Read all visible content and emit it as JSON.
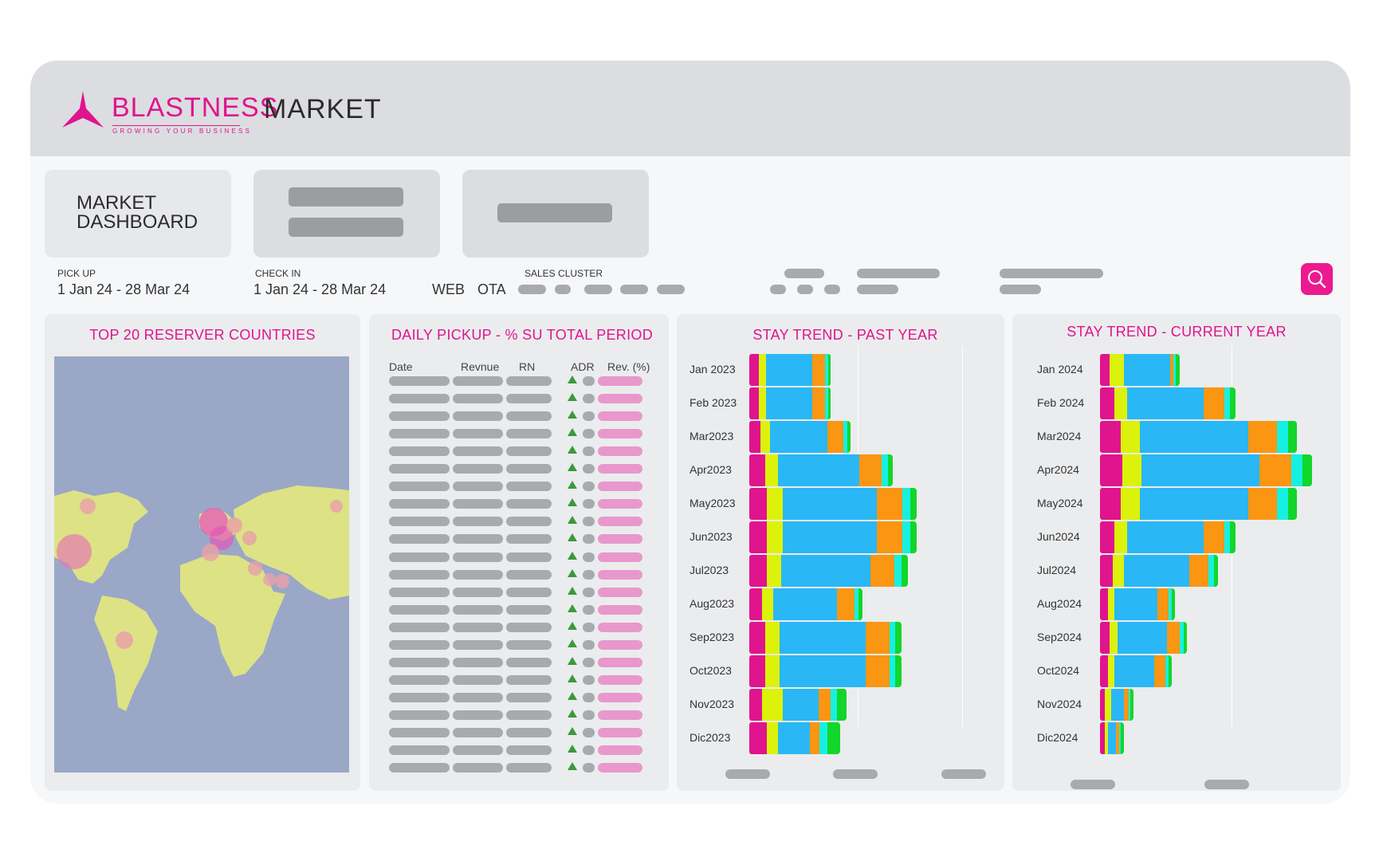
{
  "header": {
    "brand": "BLASTNESS",
    "tagline": "GROWING YOUR BUSINESS",
    "title": "MARKET"
  },
  "tiles": {
    "dashboard": "MARKET DASHBOARD"
  },
  "filters": {
    "pickup_label": "PICK UP",
    "pickup_value": "1 Jan 24 - 28 Mar 24",
    "checkin_label": "CHECK IN",
    "checkin_value": "1 Jan 24 - 28 Mar 24",
    "channel_web": "WEB",
    "channel_ota": "OTA",
    "sales_cluster_label": "SALES CLUSTER"
  },
  "panels": {
    "countries_title": "TOP 20 RESERVER COUNTRIES",
    "pickup_title": "DAILY PICKUP - % SU TOTAL PERIOD",
    "past_title": "STAY TREND - PAST YEAR",
    "current_title": "STAY TREND - CURRENT YEAR"
  },
  "pickup_table": {
    "columns": [
      "Date",
      "Revnue",
      "RN",
      "ADR",
      "Rev. (%)"
    ],
    "row_count_visible": 23
  },
  "colors": {
    "accent": "#ec1a8f",
    "series": [
      "#e0148d",
      "#dcf20a",
      "#2ab7f5",
      "#fa9612",
      "#16f0e2",
      "#12d62a"
    ]
  },
  "chart_data": [
    {
      "type": "bar",
      "title": "STAY TREND - PAST YEAR",
      "orientation": "horizontal-stacked",
      "categories": [
        "Jan 2023",
        "Feb 2023",
        "Mar2023",
        "Apr2023",
        "May2023",
        "Jun2023",
        "Jul2023",
        "Aug2023",
        "Sep2023",
        "Oct2023",
        "Nov2023",
        "Dic2023"
      ],
      "series": [
        {
          "values": [
            12,
            12,
            14,
            20,
            22,
            22,
            22,
            16,
            20,
            20,
            16,
            22
          ]
        },
        {
          "values": [
            9,
            9,
            12,
            16,
            20,
            20,
            18,
            14,
            18,
            18,
            26,
            14
          ]
        },
        {
          "values": [
            58,
            58,
            72,
            102,
            118,
            118,
            112,
            80,
            108,
            108,
            45,
            40
          ]
        },
        {
          "values": [
            16,
            16,
            20,
            28,
            32,
            32,
            30,
            22,
            30,
            30,
            15,
            12
          ]
        },
        {
          "values": [
            4,
            4,
            5,
            8,
            10,
            10,
            9,
            5,
            7,
            7,
            8,
            10
          ]
        },
        {
          "values": [
            3,
            3,
            4,
            6,
            8,
            8,
            8,
            5,
            8,
            8,
            12,
            16
          ]
        }
      ]
    },
    {
      "type": "bar",
      "title": "STAY TREND - CURRENT YEAR",
      "orientation": "horizontal-stacked",
      "categories": [
        "Jan 2024",
        "Feb 2024",
        "Mar2024",
        "Apr2024",
        "May2024",
        "Jun2024",
        "Jul2024",
        "Aug2024",
        "Sep2024",
        "Oct2024",
        "Nov2024",
        "Dic2024"
      ],
      "series": [
        {
          "values": [
            12,
            18,
            26,
            28,
            26,
            18,
            16,
            10,
            12,
            10,
            6,
            6
          ]
        },
        {
          "values": [
            18,
            16,
            24,
            24,
            24,
            16,
            14,
            8,
            10,
            8,
            8,
            4
          ]
        },
        {
          "values": [
            58,
            96,
            136,
            148,
            136,
            96,
            82,
            54,
            62,
            50,
            16,
            10
          ]
        },
        {
          "values": [
            4,
            26,
            36,
            40,
            36,
            26,
            24,
            14,
            16,
            14,
            6,
            4
          ]
        },
        {
          "values": [
            3,
            7,
            14,
            14,
            14,
            7,
            7,
            4,
            5,
            4,
            2,
            2
          ]
        },
        {
          "values": [
            5,
            7,
            11,
            12,
            11,
            7,
            5,
            4,
            4,
            4,
            4,
            4
          ]
        }
      ]
    }
  ]
}
